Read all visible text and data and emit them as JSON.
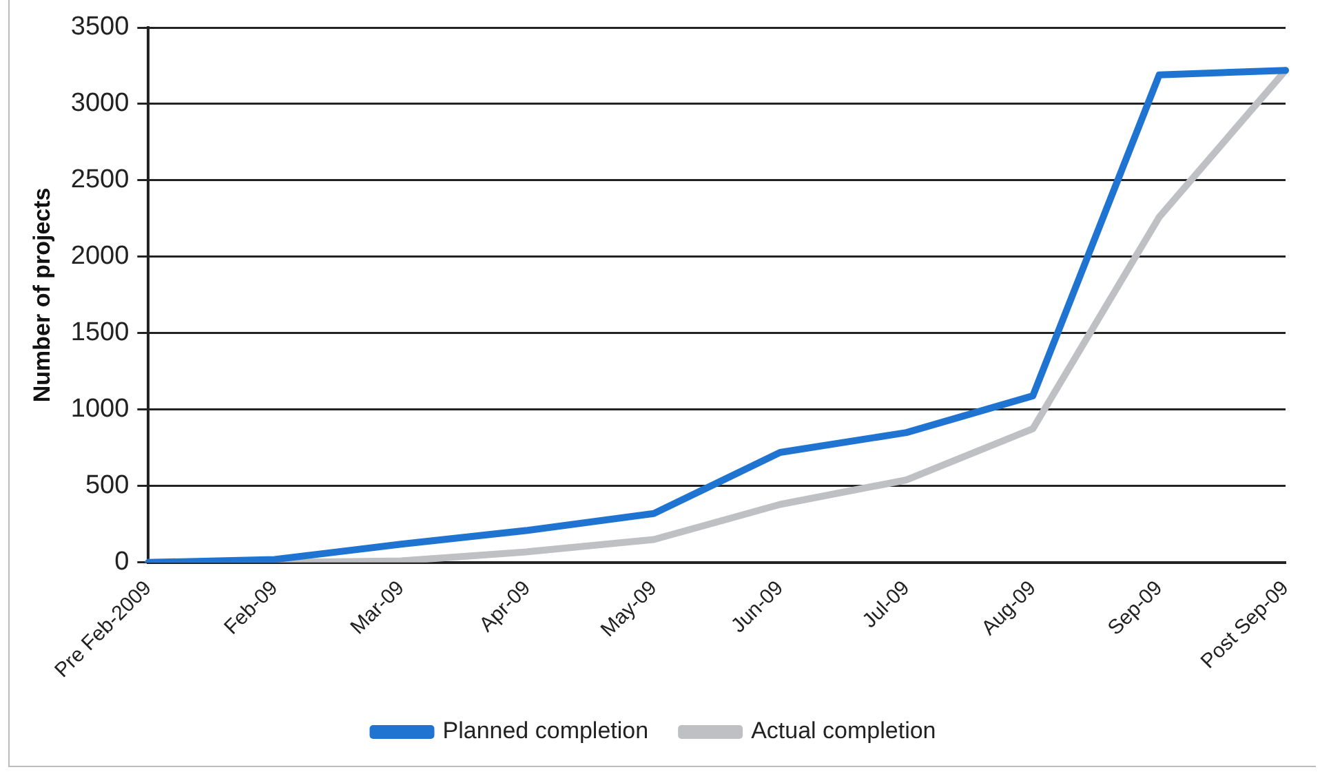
{
  "chart_data": {
    "type": "line",
    "ylabel": "Number of projects",
    "categories": [
      "Pre Feb-2009",
      "Feb-09",
      "Mar-09",
      "Apr-09",
      "May-09",
      "Jun-09",
      "Jul-09",
      "Aug-09",
      "Sep-09",
      "Post Sep-09"
    ],
    "series": [
      {
        "name": "Planned completion",
        "color": "#1f74d2",
        "values": [
          0,
          20,
          120,
          210,
          320,
          720,
          850,
          1090,
          3190,
          3220
        ]
      },
      {
        "name": "Actual completion",
        "color": "#bfc0c3",
        "values": [
          0,
          0,
          10,
          70,
          150,
          380,
          540,
          875,
          2260,
          3220
        ]
      }
    ],
    "ylim": [
      0,
      3500
    ],
    "yticks": [
      0,
      500,
      1000,
      1500,
      2000,
      2500,
      3000,
      3500
    ],
    "grid": "y",
    "legend": "bottom",
    "marker": "none",
    "line_style": "solid"
  }
}
